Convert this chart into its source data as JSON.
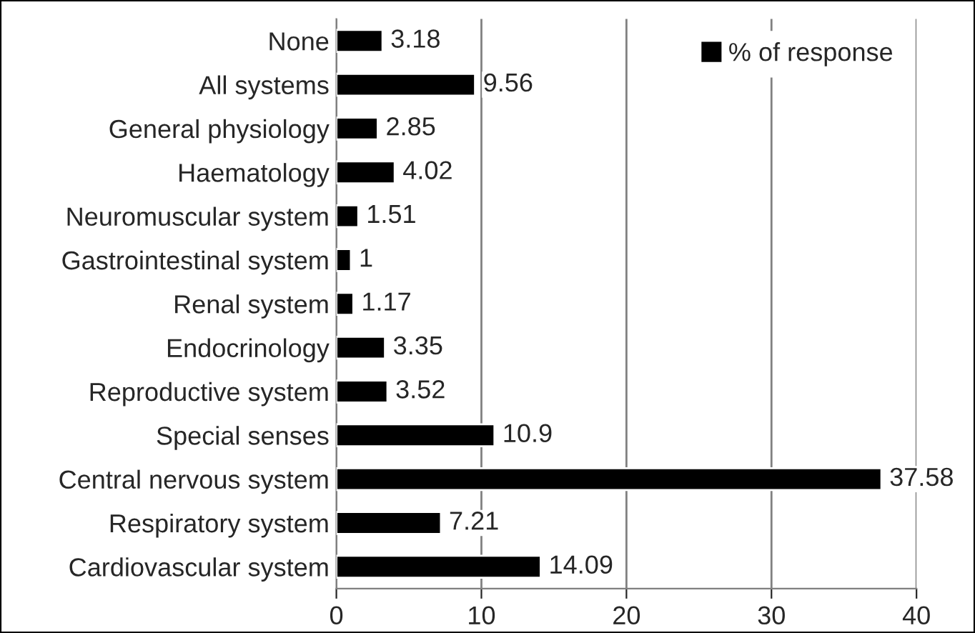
{
  "chart_data": {
    "type": "bar",
    "orientation": "horizontal",
    "categories": [
      "None",
      "All systems",
      "General physiology",
      "Haematology",
      "Neuromuscular system",
      "Gastrointestinal system",
      "Renal system",
      "Endocrinology",
      "Reproductive system",
      "Special senses",
      "Central nervous system",
      "Respiratory system",
      "Cardiovascular system"
    ],
    "series": [
      {
        "name": "% of response",
        "color": "#000000",
        "values": [
          3.18,
          9.56,
          2.85,
          4.02,
          1.51,
          1,
          1.17,
          3.35,
          3.52,
          10.9,
          37.58,
          7.21,
          14.09
        ]
      }
    ],
    "xlim": [
      0,
      40
    ],
    "xticks": [
      0,
      10,
      20,
      30,
      40
    ],
    "grid": "x",
    "legend": "top right",
    "data_labels": true
  }
}
